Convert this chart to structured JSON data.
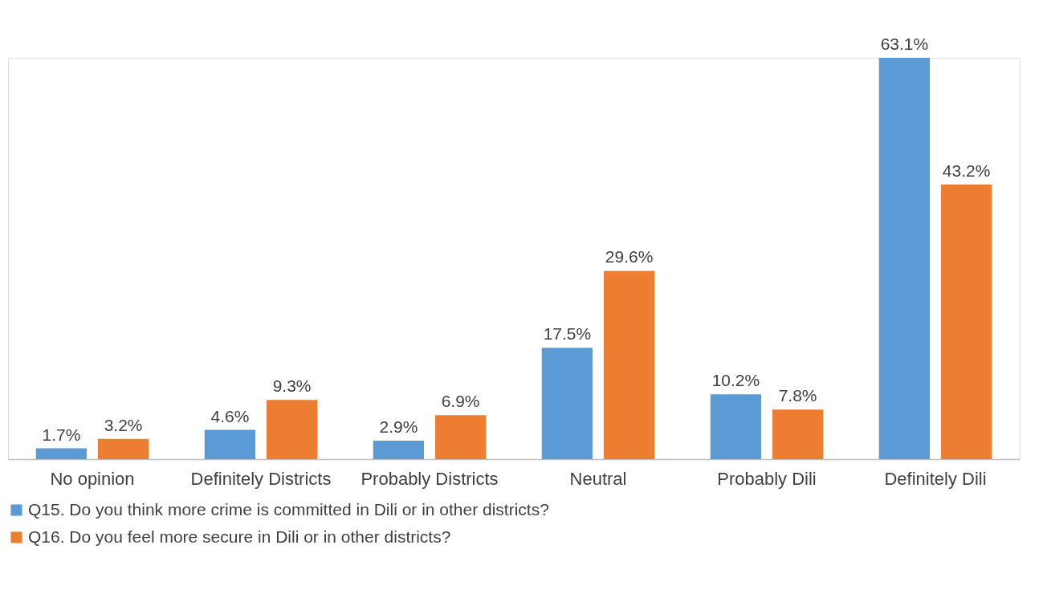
{
  "chart_data": {
    "type": "bar",
    "categories": [
      "No opinion",
      "Definitely Districts",
      "Probably Districts",
      "Neutral",
      "Probably Dili",
      "Definitely Dili"
    ],
    "series": [
      {
        "name": "Q15. Do you think more crime is committed in Dili or in other districts?",
        "color": "#5b9bd5",
        "values": [
          1.7,
          4.6,
          2.9,
          17.5,
          10.2,
          63.1
        ],
        "value_labels": [
          "1.7%",
          "4.6%",
          "2.9%",
          "17.5%",
          "10.2%",
          "63.1%"
        ]
      },
      {
        "name": "Q16. Do you feel more secure in Dili or in other districts?",
        "color": "#ed7d31",
        "values": [
          3.2,
          9.3,
          6.9,
          29.6,
          7.8,
          43.2
        ],
        "value_labels": [
          "3.2%",
          "9.3%",
          "6.9%",
          "29.6%",
          "7.8%",
          "43.2%"
        ]
      }
    ],
    "legend": "bottom",
    "grid": false
  }
}
